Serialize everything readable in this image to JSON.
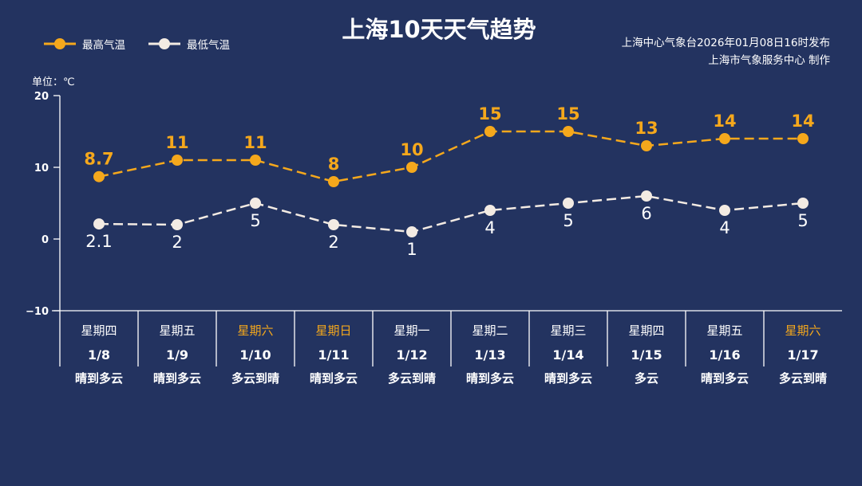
{
  "title": "上海10天天气趋势",
  "source_line1": "上海中心气象台2026年01月08日16时发布",
  "source_line2": "上海市气象服务中心 制作",
  "unit": "单位：℃",
  "colors": {
    "high": "#f5a81c",
    "low": "#f3ebe3",
    "weekend": "#f5a81c",
    "background": "#233360"
  },
  "chart_data": {
    "type": "line",
    "title": "上海10天天气趋势",
    "ylim": [
      -10,
      20
    ],
    "yticks": [
      20,
      10,
      0,
      -10
    ],
    "ytick_labels": [
      "20",
      "10",
      "0",
      "−10"
    ],
    "categories": [
      "1/8",
      "1/9",
      "1/10",
      "1/11",
      "1/12",
      "1/13",
      "1/14",
      "1/15",
      "1/16",
      "1/17"
    ],
    "weekdays": [
      "星期四",
      "星期五",
      "星期六",
      "星期日",
      "星期一",
      "星期二",
      "星期三",
      "星期四",
      "星期五",
      "星期六"
    ],
    "weekend": [
      false,
      false,
      true,
      true,
      false,
      false,
      false,
      false,
      false,
      true
    ],
    "weather": [
      "晴到多云",
      "晴到多云",
      "多云到晴",
      "晴到多云",
      "多云到晴",
      "晴到多云",
      "晴到多云",
      "多云",
      "晴到多云",
      "多云到晴"
    ],
    "legend_position": "top-left",
    "series": [
      {
        "name": "最高气温",
        "values": [
          8.7,
          11,
          11,
          8,
          10,
          15,
          15,
          13,
          14,
          14
        ],
        "labels": [
          "8.7",
          "11",
          "11",
          "8",
          "10",
          "15",
          "15",
          "13",
          "14",
          "14"
        ]
      },
      {
        "name": "最低气温",
        "values": [
          2.1,
          2,
          5,
          2,
          1,
          4,
          5,
          6,
          4,
          5
        ],
        "labels": [
          "2.1",
          "2",
          "5",
          "2",
          "1",
          "4",
          "5",
          "6",
          "4",
          "5"
        ]
      }
    ]
  }
}
